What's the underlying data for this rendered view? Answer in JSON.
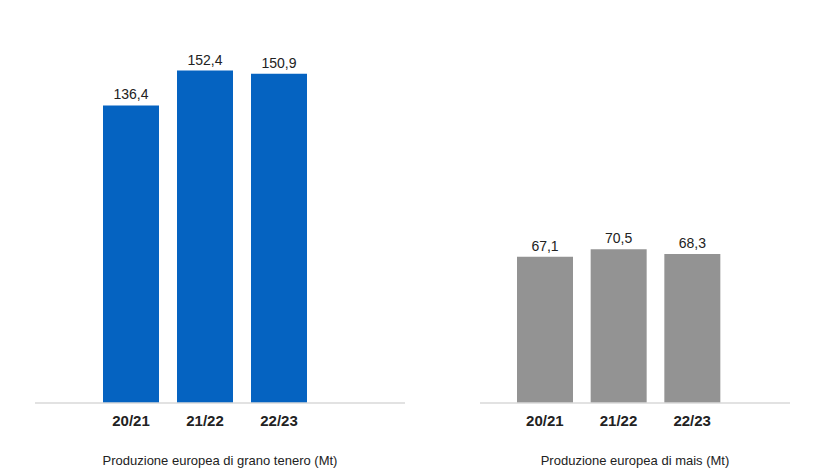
{
  "chart_data": [
    {
      "type": "bar",
      "categories": [
        "20/21",
        "21/22",
        "22/23"
      ],
      "values": [
        136.4,
        152.4,
        150.9
      ],
      "value_labels": [
        "136,4",
        "152,4",
        "150,9"
      ],
      "color": "#0563c1",
      "xlabel": "Produzione europea di grano tenero (Mt)",
      "ylim": [
        0,
        160
      ],
      "yticks": [
        0,
        160
      ],
      "grid": false,
      "data_labels": true,
      "tick_labels": "x"
    },
    {
      "type": "bar",
      "categories": [
        "20/21",
        "21/22",
        "22/23"
      ],
      "values": [
        67.1,
        70.5,
        68.3
      ],
      "value_labels": [
        "67,1",
        "70,5",
        "68,3"
      ],
      "color": "#939393",
      "xlabel": "Produzione europea di mais (Mt)",
      "ylim": [
        0,
        160
      ],
      "yticks": [
        0,
        160
      ],
      "grid": false,
      "data_labels": true,
      "tick_labels": "x"
    }
  ]
}
